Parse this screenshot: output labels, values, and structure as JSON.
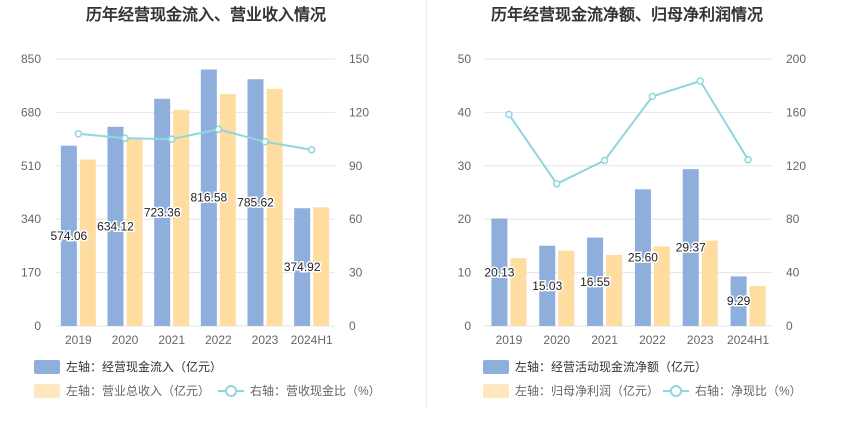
{
  "colors": {
    "bar_primary": "#8eaedc",
    "bar_secondary": "#ffdca0",
    "line": "#8fd6dd",
    "grid": "#e6e6e6",
    "axis_text": "#666666",
    "title_text": "#333333",
    "label_text": "#222222"
  },
  "chart_data": [
    {
      "type": "bar",
      "title": "历年经营现金流入、营业收入情况",
      "categories": [
        "2019",
        "2020",
        "2021",
        "2022",
        "2023",
        "2024H1"
      ],
      "series": [
        {
          "name": "左轴：经营现金流入（亿元）",
          "axis": "left",
          "kind": "bar",
          "values": [
            574.06,
            634.12,
            723.36,
            816.58,
            785.62,
            374.92
          ],
          "labels": [
            "574.06",
            "634.12",
            "723.36",
            "816.58",
            "785.62",
            "374.92"
          ]
        },
        {
          "name": "左轴：营业总收入（亿元）",
          "axis": "left",
          "kind": "bar",
          "values": [
            530,
            600,
            688,
            738,
            755,
            378
          ]
        },
        {
          "name": "右轴：营收现金比（%）",
          "axis": "right",
          "kind": "line",
          "values": [
            108,
            105.5,
            105,
            110.5,
            103.5,
            99
          ]
        }
      ],
      "left_axis": {
        "min": 0,
        "max": 850,
        "ticks": [
          "0",
          "170",
          "340",
          "510",
          "680",
          "850"
        ]
      },
      "right_axis": {
        "min": 0,
        "max": 150,
        "ticks": [
          "0",
          "30",
          "60",
          "90",
          "120",
          "150"
        ]
      }
    },
    {
      "type": "bar",
      "title": "历年经营现金流净额、归母净利润情况",
      "categories": [
        "2019",
        "2020",
        "2021",
        "2022",
        "2023",
        "2024H1"
      ],
      "series": [
        {
          "name": "左轴：经营活动现金流净额（亿元）",
          "axis": "left",
          "kind": "bar",
          "values": [
            20.13,
            15.03,
            16.55,
            25.6,
            29.37,
            9.29
          ],
          "labels": [
            "20.13",
            "15.03",
            "16.55",
            "25.60",
            "29.37",
            "9.29"
          ]
        },
        {
          "name": "左轴：归母净利润（亿元）",
          "axis": "left",
          "kind": "bar",
          "values": [
            12.7,
            14.1,
            13.3,
            14.9,
            16.0,
            7.5
          ]
        },
        {
          "name": "右轴：净现比（%）",
          "axis": "right",
          "kind": "line",
          "values": [
            158.5,
            106.5,
            124,
            172,
            183.5,
            124.5
          ]
        }
      ],
      "left_axis": {
        "min": 0,
        "max": 50,
        "ticks": [
          "0",
          "10",
          "20",
          "30",
          "40",
          "50"
        ]
      },
      "right_axis": {
        "min": 0,
        "max": 200,
        "ticks": [
          "0",
          "40",
          "80",
          "120",
          "160",
          "200"
        ]
      }
    }
  ]
}
